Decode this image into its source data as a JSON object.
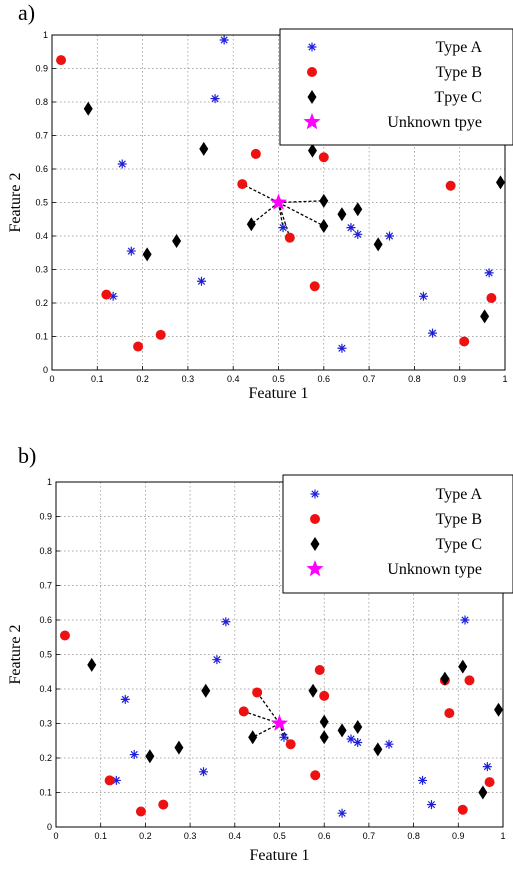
{
  "chart_data": [
    {
      "panel_label": "a)",
      "type": "scatter",
      "xlabel": "Feature 1",
      "ylabel": "Feature 2",
      "xlim": [
        0,
        1
      ],
      "ylim": [
        0,
        1
      ],
      "xticks": [
        "0",
        "0.1",
        "0.2",
        "0.3",
        "0.4",
        "0.5",
        "0.6",
        "0.7",
        "0.8",
        "0.9",
        "1"
      ],
      "yticks": [
        "0",
        "0.1",
        "0.2",
        "0.3",
        "0.4",
        "0.5",
        "0.6",
        "0.7",
        "0.8",
        "0.9",
        "1"
      ],
      "grid": true,
      "legend_position": "top-right",
      "series": [
        {
          "name": "Type A",
          "marker": "asterisk",
          "color": "#1f1fdb",
          "points": [
            [
              0.38,
              0.985
            ],
            [
              0.36,
              0.81
            ],
            [
              0.155,
              0.615
            ],
            [
              0.175,
              0.355
            ],
            [
              0.33,
              0.265
            ],
            [
              0.135,
              0.22
            ],
            [
              0.51,
              0.425
            ],
            [
              0.66,
              0.425
            ],
            [
              0.675,
              0.405
            ],
            [
              0.745,
              0.4
            ],
            [
              0.82,
              0.22
            ],
            [
              0.84,
              0.11
            ],
            [
              0.64,
              0.065
            ],
            [
              0.965,
              0.29
            ]
          ]
        },
        {
          "name": "Type B",
          "marker": "circle",
          "color": "#ee1111",
          "points": [
            [
              0.02,
              0.925
            ],
            [
              0.45,
              0.645
            ],
            [
              0.6,
              0.635
            ],
            [
              0.42,
              0.555
            ],
            [
              0.525,
              0.395
            ],
            [
              0.58,
              0.25
            ],
            [
              0.12,
              0.225
            ],
            [
              0.24,
              0.105
            ],
            [
              0.19,
              0.07
            ],
            [
              0.88,
              0.55
            ],
            [
              0.87,
              0.7
            ],
            [
              0.91,
              0.085
            ],
            [
              0.97,
              0.215
            ]
          ]
        },
        {
          "name": "Tpye C",
          "marker": "diamond",
          "color": "#000000",
          "points": [
            [
              0.08,
              0.78
            ],
            [
              0.335,
              0.66
            ],
            [
              0.575,
              0.655
            ],
            [
              0.6,
              0.505
            ],
            [
              0.64,
              0.465
            ],
            [
              0.675,
              0.48
            ],
            [
              0.6,
              0.43
            ],
            [
              0.44,
              0.435
            ],
            [
              0.72,
              0.375
            ],
            [
              0.275,
              0.385
            ],
            [
              0.21,
              0.345
            ],
            [
              0.99,
              0.56
            ],
            [
              0.955,
              0.16
            ]
          ]
        },
        {
          "name": "Unknown tpye",
          "marker": "star",
          "color": "#ff00ff",
          "points": [
            [
              0.5,
              0.5
            ]
          ]
        }
      ],
      "neighbor_links": {
        "from": [
          0.5,
          0.5
        ],
        "to": [
          [
            0.42,
            0.555
          ],
          [
            0.44,
            0.435
          ],
          [
            0.51,
            0.425
          ],
          [
            0.525,
            0.395
          ],
          [
            0.6,
            0.43
          ],
          [
            0.6,
            0.505
          ]
        ]
      }
    },
    {
      "panel_label": "b)",
      "type": "scatter",
      "xlabel": "Feature 1",
      "ylabel": "Feature 2",
      "xlim": [
        0,
        1
      ],
      "ylim": [
        0,
        1
      ],
      "xticks": [
        "0",
        "0.1",
        "0.2",
        "0.3",
        "0.4",
        "0.5",
        "0.6",
        "0.7",
        "0.8",
        "0.9",
        "1"
      ],
      "yticks": [
        "0",
        "0.1",
        "0.2",
        "0.3",
        "0.4",
        "0.5",
        "0.6",
        "0.7",
        "0.8",
        "0.9",
        "1"
      ],
      "grid": true,
      "legend_position": "top-right",
      "series": [
        {
          "name": "Type A",
          "marker": "asterisk",
          "color": "#1f1fdb",
          "points": [
            [
              0.38,
              0.595
            ],
            [
              0.36,
              0.485
            ],
            [
              0.155,
              0.37
            ],
            [
              0.175,
              0.21
            ],
            [
              0.33,
              0.16
            ],
            [
              0.135,
              0.135
            ],
            [
              0.51,
              0.26
            ],
            [
              0.66,
              0.255
            ],
            [
              0.675,
              0.245
            ],
            [
              0.745,
              0.24
            ],
            [
              0.82,
              0.135
            ],
            [
              0.84,
              0.065
            ],
            [
              0.64,
              0.04
            ],
            [
              0.965,
              0.175
            ],
            [
              0.915,
              0.6
            ]
          ]
        },
        {
          "name": "Type B",
          "marker": "circle",
          "color": "#ee1111",
          "points": [
            [
              0.02,
              0.555
            ],
            [
              0.45,
              0.39
            ],
            [
              0.6,
              0.38
            ],
            [
              0.59,
              0.455
            ],
            [
              0.42,
              0.335
            ],
            [
              0.525,
              0.24
            ],
            [
              0.58,
              0.15
            ],
            [
              0.12,
              0.135
            ],
            [
              0.24,
              0.065
            ],
            [
              0.19,
              0.045
            ],
            [
              0.88,
              0.33
            ],
            [
              0.87,
              0.425
            ],
            [
              0.925,
              0.425
            ],
            [
              0.91,
              0.05
            ],
            [
              0.97,
              0.13
            ]
          ]
        },
        {
          "name": "Type C",
          "marker": "diamond",
          "color": "#000000",
          "points": [
            [
              0.08,
              0.47
            ],
            [
              0.335,
              0.395
            ],
            [
              0.575,
              0.395
            ],
            [
              0.6,
              0.305
            ],
            [
              0.64,
              0.28
            ],
            [
              0.675,
              0.29
            ],
            [
              0.6,
              0.26
            ],
            [
              0.44,
              0.26
            ],
            [
              0.72,
              0.225
            ],
            [
              0.275,
              0.23
            ],
            [
              0.21,
              0.205
            ],
            [
              0.87,
              0.43
            ],
            [
              0.91,
              0.465
            ],
            [
              0.99,
              0.34
            ],
            [
              0.955,
              0.1
            ]
          ]
        },
        {
          "name": "Unknown type",
          "marker": "star",
          "color": "#ff00ff",
          "points": [
            [
              0.5,
              0.3
            ]
          ]
        }
      ],
      "neighbor_links": {
        "from": [
          0.5,
          0.3
        ],
        "to": [
          [
            0.45,
            0.39
          ],
          [
            0.42,
            0.335
          ],
          [
            0.44,
            0.26
          ],
          [
            0.51,
            0.26
          ],
          [
            0.525,
            0.24
          ]
        ]
      }
    }
  ]
}
